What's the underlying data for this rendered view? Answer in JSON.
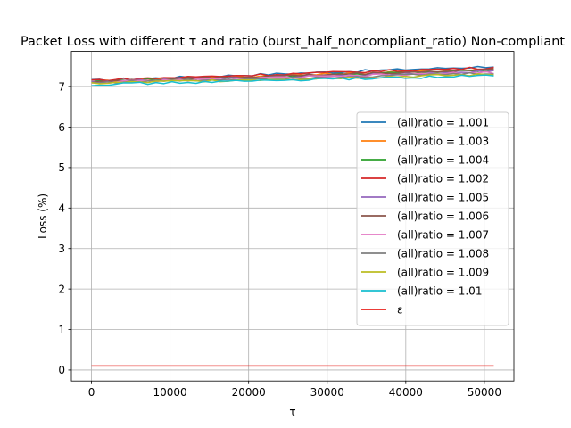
{
  "chart_data": {
    "type": "line",
    "title": "Packet Loss with different τ and ratio (burst_half_noncompliant_ratio) Non-compliant",
    "xlabel": "τ",
    "ylabel": "Loss (%)",
    "xlim": [
      -2560,
      53760
    ],
    "ylim": [
      -0.27,
      7.87
    ],
    "x_ticks": [
      0,
      10000,
      20000,
      30000,
      40000,
      50000
    ],
    "y_ticks": [
      0,
      1,
      2,
      3,
      4,
      5,
      6,
      7
    ],
    "grid": true,
    "legend_position": "center-right",
    "series": [
      {
        "name": "(all)ratio = 1.001",
        "color": "#1f77b4",
        "start": 7.15,
        "end": 7.5
      },
      {
        "name": "(all)ratio = 1.003",
        "color": "#ff7f0e",
        "start": 7.13,
        "end": 7.43
      },
      {
        "name": "(all)ratio = 1.004",
        "color": "#2ca02c",
        "start": 7.13,
        "end": 7.4
      },
      {
        "name": "(all)ratio = 1.002",
        "color": "#d62728",
        "start": 7.16,
        "end": 7.47
      },
      {
        "name": "(all)ratio = 1.005",
        "color": "#9467bd",
        "start": 7.11,
        "end": 7.38
      },
      {
        "name": "(all)ratio = 1.006",
        "color": "#8c564b",
        "start": 7.12,
        "end": 7.42
      },
      {
        "name": "(all)ratio = 1.007",
        "color": "#e377c2",
        "start": 7.1,
        "end": 7.35
      },
      {
        "name": "(all)ratio = 1.008",
        "color": "#7f7f7f",
        "start": 7.1,
        "end": 7.33
      },
      {
        "name": "(all)ratio = 1.009",
        "color": "#bcbd22",
        "start": 7.08,
        "end": 7.3
      },
      {
        "name": "(all)ratio = 1.01",
        "color": "#17becf",
        "start": 7.05,
        "end": 7.27
      },
      {
        "name": "ε",
        "color": "#e8211c",
        "start": 0.1,
        "end": 0.1
      }
    ]
  }
}
